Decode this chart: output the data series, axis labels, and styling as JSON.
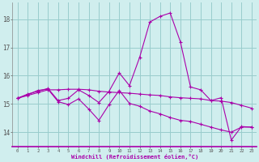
{
  "xlabel": "Windchill (Refroidissement éolien,°C)",
  "bg_color": "#d0eeee",
  "line_color": "#aa00aa",
  "grid_color": "#99cccc",
  "xlim_min": -0.5,
  "xlim_max": 23.5,
  "ylim_min": 13.5,
  "ylim_max": 18.6,
  "yticks": [
    14,
    15,
    16,
    17,
    18
  ],
  "xticks": [
    0,
    1,
    2,
    3,
    4,
    5,
    6,
    7,
    8,
    9,
    10,
    11,
    12,
    13,
    14,
    15,
    16,
    17,
    18,
    19,
    20,
    21,
    22,
    23
  ],
  "series": [
    [
      15.2,
      15.3,
      15.4,
      15.5,
      15.5,
      15.52,
      15.52,
      15.5,
      15.45,
      15.42,
      15.4,
      15.38,
      15.35,
      15.32,
      15.3,
      15.25,
      15.22,
      15.2,
      15.18,
      15.12,
      15.1,
      15.05,
      14.95,
      14.85
    ],
    [
      15.2,
      15.35,
      15.45,
      15.55,
      15.12,
      15.2,
      15.5,
      15.3,
      15.05,
      15.45,
      16.1,
      15.65,
      16.65,
      17.9,
      18.1,
      18.22,
      17.2,
      15.6,
      15.5,
      15.12,
      15.22,
      13.72,
      14.2,
      14.18
    ],
    [
      15.2,
      15.32,
      15.48,
      15.52,
      15.08,
      14.98,
      15.18,
      14.82,
      14.42,
      14.98,
      15.48,
      15.02,
      14.92,
      14.75,
      14.65,
      14.52,
      14.42,
      14.38,
      14.28,
      14.18,
      14.08,
      14.0,
      14.18,
      14.18
    ]
  ]
}
